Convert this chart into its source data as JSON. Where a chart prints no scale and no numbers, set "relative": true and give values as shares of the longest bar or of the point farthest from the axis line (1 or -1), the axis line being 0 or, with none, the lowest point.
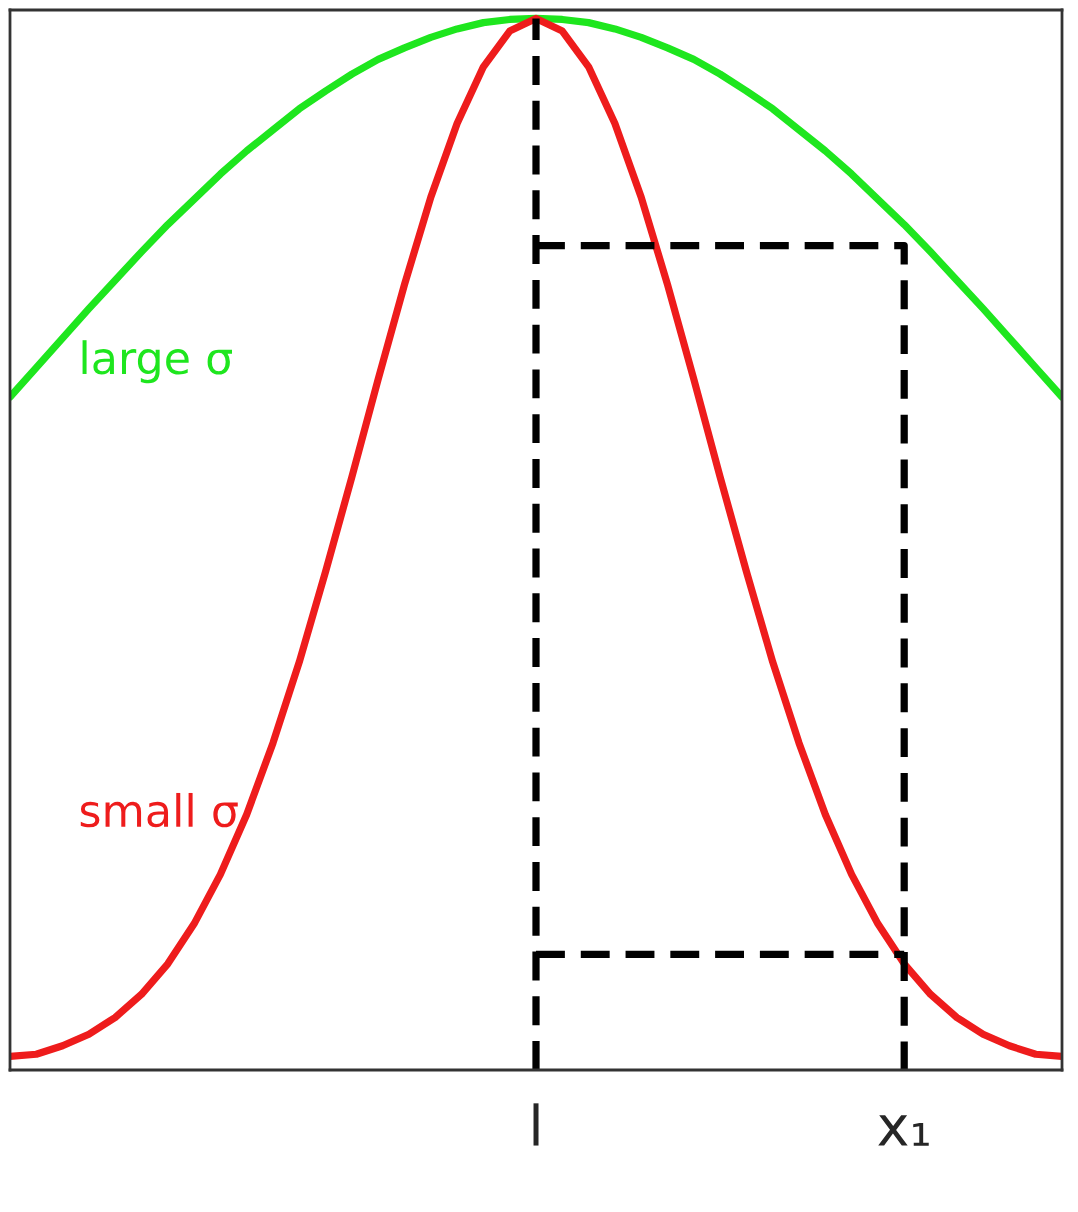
{
  "chart_data": {
    "type": "line",
    "relative": true,
    "tick_labels": "x",
    "categories": [
      null,
      null,
      null,
      null,
      null,
      null,
      null,
      null,
      null,
      null,
      null,
      null,
      null,
      null,
      null,
      null,
      null,
      null,
      null,
      null,
      "l",
      null,
      null,
      null,
      null,
      null,
      null,
      null,
      null,
      null,
      null,
      null,
      null,
      null,
      "x₁",
      null,
      null,
      null,
      null,
      null,
      null
    ],
    "series": [
      {
        "name": "large σ",
        "color": "#1ee61e",
        "line_style": "solid",
        "values": [
          0.64,
          0.668,
          0.696,
          0.724,
          0.751,
          0.778,
          0.804,
          0.828,
          0.852,
          0.874,
          0.894,
          0.914,
          0.931,
          0.947,
          0.961,
          0.972,
          0.982,
          0.99,
          0.996,
          0.999,
          1,
          0.999,
          0.996,
          0.99,
          0.982,
          0.972,
          0.961,
          0.947,
          0.931,
          0.914,
          0.894,
          0.874,
          0.852,
          0.828,
          0.804,
          0.778,
          0.751,
          0.724,
          0.696,
          0.668,
          0.64
        ]
      },
      {
        "name": "small σ",
        "color": "#ee1c1c",
        "line_style": "solid",
        "values": [
          0.013,
          0.015,
          0.023,
          0.034,
          0.05,
          0.072,
          0.101,
          0.139,
          0.186,
          0.243,
          0.311,
          0.388,
          0.474,
          0.564,
          0.657,
          0.747,
          0.83,
          0.9,
          0.954,
          0.988,
          1,
          0.988,
          0.954,
          0.9,
          0.83,
          0.747,
          0.657,
          0.564,
          0.474,
          0.388,
          0.311,
          0.243,
          0.186,
          0.139,
          0.101,
          0.072,
          0.05,
          0.034,
          0.023,
          0.015,
          0.013
        ]
      },
      {
        "color": "#000000",
        "line_style": "dashed",
        "x": [
          "l",
          "l"
        ],
        "values": [
          0,
          1
        ]
      },
      {
        "color": "#000000",
        "line_style": "dashed",
        "x": [
          "l",
          "x₁",
          "x₁"
        ],
        "values": [
          0.784,
          0.784,
          0
        ]
      },
      {
        "color": "#000000",
        "line_style": "dashed",
        "x": [
          "l",
          "x₁"
        ],
        "values": [
          0.11,
          0.11
        ]
      }
    ]
  }
}
